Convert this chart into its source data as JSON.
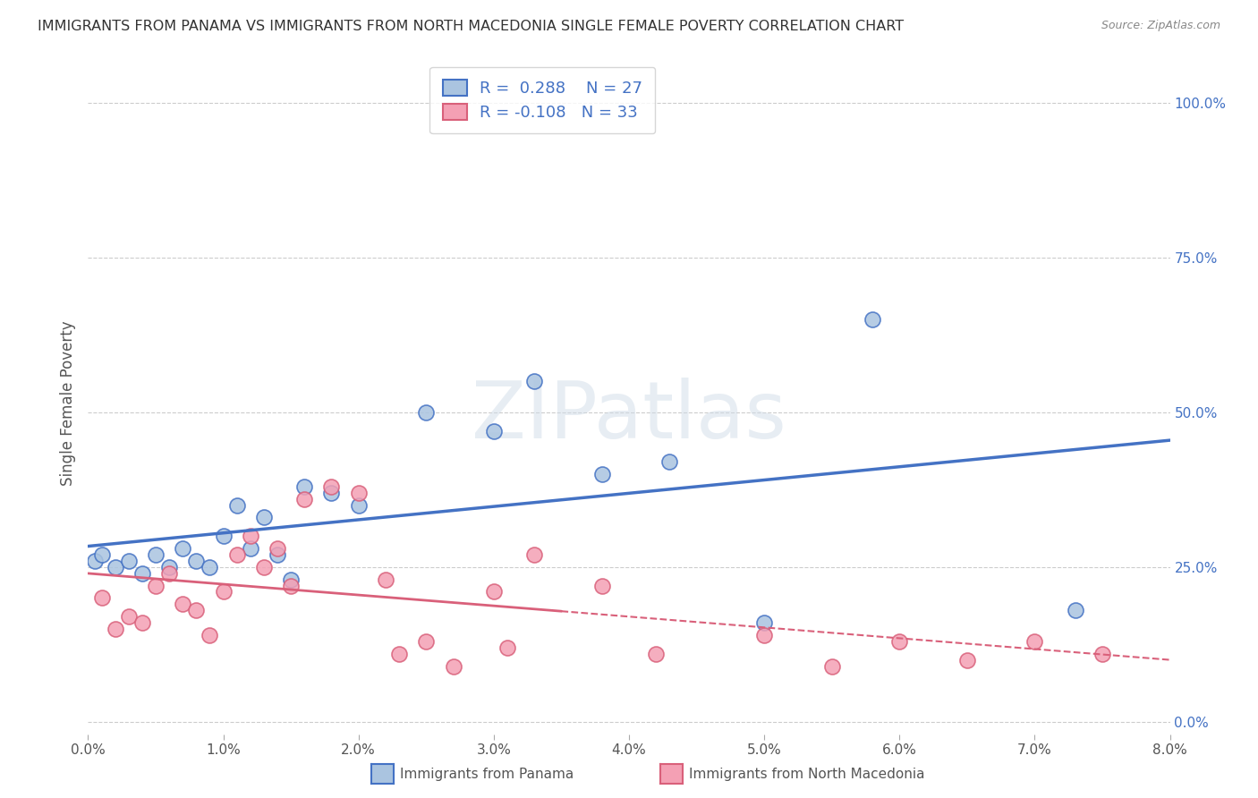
{
  "title": "IMMIGRANTS FROM PANAMA VS IMMIGRANTS FROM NORTH MACEDONIA SINGLE FEMALE POVERTY CORRELATION CHART",
  "source": "Source: ZipAtlas.com",
  "xlabel_blue": "Immigrants from Panama",
  "xlabel_pink": "Immigrants from North Macedonia",
  "ylabel": "Single Female Poverty",
  "r_blue": 0.288,
  "n_blue": 27,
  "r_pink": -0.108,
  "n_pink": 33,
  "color_blue": "#aac4e0",
  "color_blue_line": "#4472c4",
  "color_pink": "#f4a0b4",
  "color_pink_line": "#d9607a",
  "xlim": [
    0.0,
    0.08
  ],
  "ylim": [
    -0.02,
    1.05
  ],
  "yticks": [
    0.0,
    0.25,
    0.5,
    0.75,
    1.0
  ],
  "ytick_labels": [
    "0.0%",
    "25.0%",
    "50.0%",
    "75.0%",
    "100.0%"
  ],
  "xticks": [
    0.0,
    0.01,
    0.02,
    0.03,
    0.04,
    0.05,
    0.06,
    0.07,
    0.08
  ],
  "xtick_labels": [
    "0.0%",
    "1.0%",
    "2.0%",
    "3.0%",
    "4.0%",
    "5.0%",
    "6.0%",
    "7.0%",
    "8.0%"
  ],
  "blue_x": [
    0.0005,
    0.001,
    0.002,
    0.003,
    0.004,
    0.005,
    0.006,
    0.007,
    0.008,
    0.009,
    0.01,
    0.011,
    0.012,
    0.013,
    0.014,
    0.015,
    0.016,
    0.018,
    0.02,
    0.025,
    0.03,
    0.033,
    0.038,
    0.043,
    0.05,
    0.058,
    0.073
  ],
  "blue_y": [
    0.26,
    0.27,
    0.25,
    0.26,
    0.24,
    0.27,
    0.25,
    0.28,
    0.26,
    0.25,
    0.3,
    0.35,
    0.28,
    0.33,
    0.27,
    0.23,
    0.38,
    0.37,
    0.35,
    0.5,
    0.47,
    0.55,
    0.4,
    0.42,
    0.16,
    0.65,
    0.18
  ],
  "pink_x": [
    0.001,
    0.002,
    0.003,
    0.004,
    0.005,
    0.006,
    0.007,
    0.008,
    0.009,
    0.01,
    0.011,
    0.012,
    0.013,
    0.014,
    0.015,
    0.016,
    0.018,
    0.02,
    0.022,
    0.023,
    0.025,
    0.027,
    0.03,
    0.031,
    0.033,
    0.038,
    0.042,
    0.05,
    0.055,
    0.06,
    0.065,
    0.07,
    0.075
  ],
  "pink_y": [
    0.2,
    0.15,
    0.17,
    0.16,
    0.22,
    0.24,
    0.19,
    0.18,
    0.14,
    0.21,
    0.27,
    0.3,
    0.25,
    0.28,
    0.22,
    0.36,
    0.38,
    0.37,
    0.23,
    0.11,
    0.13,
    0.09,
    0.21,
    0.12,
    0.27,
    0.22,
    0.11,
    0.14,
    0.09,
    0.13,
    0.1,
    0.13,
    0.11
  ],
  "watermark_text": "ZIPatlas",
  "background_color": "#ffffff",
  "grid_color": "#cccccc"
}
